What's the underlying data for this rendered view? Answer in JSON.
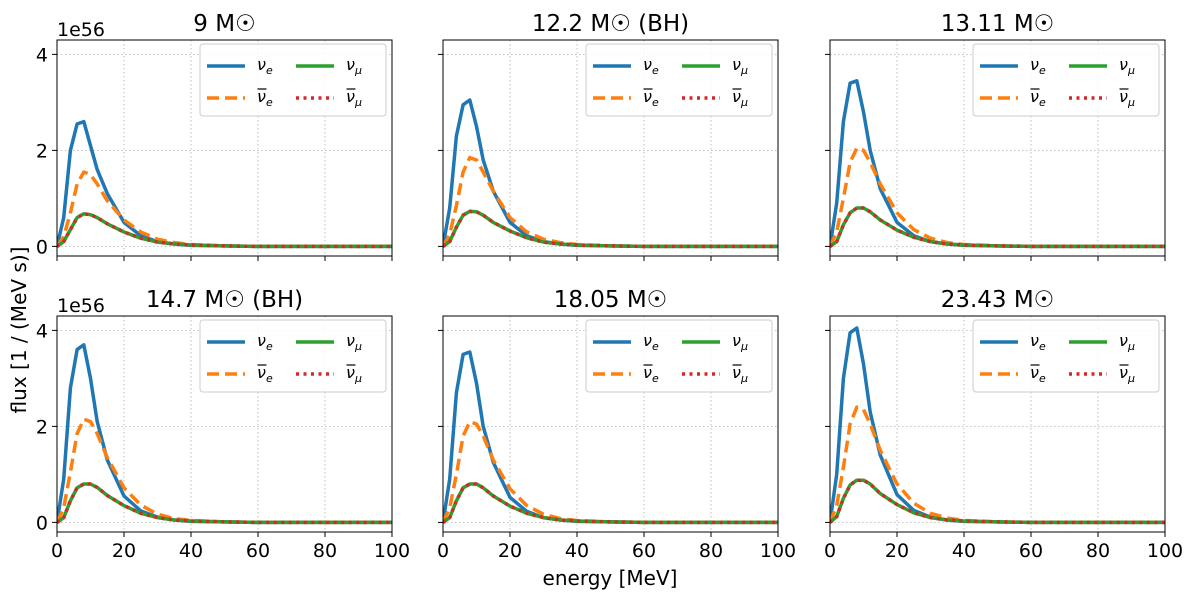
{
  "figure": {
    "ylabel": "flux [1 / (MeV s)]",
    "xlabel": "energy [MeV]",
    "offset_text": "1e56"
  },
  "legend_labels": [
    "ν_e",
    "ν̄_e",
    "ν_μ",
    "ν̄_μ"
  ],
  "colors": {
    "nu_e": "#1f77b4",
    "nubar_e": "#ff7f0e",
    "nu_mu": "#2ca02c",
    "nubar_mu": "#d62728"
  },
  "chart_data": [
    {
      "type": "line",
      "title": "9 M☉",
      "xlim": [
        0,
        100
      ],
      "ylim": [
        -0.2,
        4.3
      ],
      "xticks": [
        0,
        20,
        40,
        60,
        80,
        100
      ],
      "yticks": [
        0,
        2,
        4
      ],
      "grid": true,
      "legend": "top-right",
      "x": [
        0,
        2,
        4,
        6,
        8,
        10,
        12,
        15,
        20,
        25,
        30,
        35,
        40,
        50,
        60,
        80,
        100
      ],
      "series": [
        {
          "name": "ν_e",
          "values": [
            0,
            0.6,
            2.0,
            2.55,
            2.6,
            2.1,
            1.6,
            1.1,
            0.5,
            0.22,
            0.1,
            0.05,
            0.02,
            0.01,
            0,
            0,
            0
          ]
        },
        {
          "name": "ν̄_e",
          "values": [
            0,
            0.2,
            0.7,
            1.3,
            1.55,
            1.5,
            1.3,
            0.95,
            0.55,
            0.3,
            0.15,
            0.08,
            0.04,
            0.01,
            0,
            0,
            0
          ]
        },
        {
          "name": "ν_μ",
          "values": [
            0,
            0.1,
            0.35,
            0.6,
            0.68,
            0.66,
            0.6,
            0.47,
            0.3,
            0.17,
            0.09,
            0.05,
            0.03,
            0.01,
            0,
            0,
            0
          ]
        },
        {
          "name": "ν̄_μ",
          "values": [
            0,
            0.1,
            0.35,
            0.6,
            0.68,
            0.66,
            0.6,
            0.47,
            0.3,
            0.17,
            0.09,
            0.05,
            0.03,
            0.01,
            0,
            0,
            0
          ]
        }
      ]
    },
    {
      "type": "line",
      "title": "12.2 M☉ (BH)",
      "xlim": [
        0,
        100
      ],
      "ylim": [
        -0.2,
        4.3
      ],
      "xticks": [
        0,
        20,
        40,
        60,
        80,
        100
      ],
      "yticks": [
        0,
        2,
        4
      ],
      "grid": true,
      "legend": "top-right",
      "x": [
        0,
        2,
        4,
        6,
        8,
        10,
        12,
        15,
        20,
        25,
        30,
        35,
        40,
        50,
        60,
        80,
        100
      ],
      "series": [
        {
          "name": "ν_e",
          "values": [
            0,
            0.8,
            2.3,
            2.95,
            3.05,
            2.5,
            1.8,
            1.15,
            0.5,
            0.22,
            0.1,
            0.05,
            0.02,
            0.01,
            0,
            0,
            0
          ]
        },
        {
          "name": "ν̄_e",
          "values": [
            0,
            0.25,
            0.85,
            1.55,
            1.85,
            1.8,
            1.55,
            1.15,
            0.6,
            0.3,
            0.15,
            0.08,
            0.04,
            0.01,
            0,
            0,
            0
          ]
        },
        {
          "name": "ν_μ",
          "values": [
            0,
            0.1,
            0.4,
            0.65,
            0.73,
            0.72,
            0.65,
            0.5,
            0.32,
            0.18,
            0.09,
            0.05,
            0.03,
            0.01,
            0,
            0,
            0
          ]
        },
        {
          "name": "ν̄_μ",
          "values": [
            0,
            0.1,
            0.4,
            0.65,
            0.73,
            0.72,
            0.65,
            0.5,
            0.32,
            0.18,
            0.09,
            0.05,
            0.03,
            0.01,
            0,
            0,
            0
          ]
        }
      ]
    },
    {
      "type": "line",
      "title": "13.11 M☉",
      "xlim": [
        0,
        100
      ],
      "ylim": [
        -0.2,
        4.3
      ],
      "xticks": [
        0,
        20,
        40,
        60,
        80,
        100
      ],
      "yticks": [
        0,
        2,
        4
      ],
      "grid": true,
      "legend": "top-right",
      "x": [
        0,
        2,
        4,
        6,
        8,
        10,
        12,
        15,
        20,
        25,
        30,
        35,
        40,
        50,
        60,
        80,
        100
      ],
      "series": [
        {
          "name": "ν_e",
          "values": [
            0,
            0.9,
            2.6,
            3.4,
            3.45,
            2.8,
            2.0,
            1.2,
            0.5,
            0.22,
            0.1,
            0.05,
            0.02,
            0.01,
            0,
            0,
            0
          ]
        },
        {
          "name": "ν̄_e",
          "values": [
            0,
            0.3,
            1.0,
            1.75,
            2.05,
            2.0,
            1.75,
            1.3,
            0.7,
            0.35,
            0.17,
            0.08,
            0.04,
            0.01,
            0,
            0,
            0
          ]
        },
        {
          "name": "ν_μ",
          "values": [
            0,
            0.1,
            0.45,
            0.7,
            0.8,
            0.8,
            0.72,
            0.55,
            0.34,
            0.19,
            0.1,
            0.05,
            0.03,
            0.01,
            0,
            0,
            0
          ]
        },
        {
          "name": "ν̄_μ",
          "values": [
            0,
            0.1,
            0.45,
            0.7,
            0.8,
            0.8,
            0.72,
            0.55,
            0.34,
            0.19,
            0.1,
            0.05,
            0.03,
            0.01,
            0,
            0,
            0
          ]
        }
      ]
    },
    {
      "type": "line",
      "title": "14.7 M☉ (BH)",
      "xlim": [
        0,
        100
      ],
      "ylim": [
        -0.2,
        4.3
      ],
      "xticks": [
        0,
        20,
        40,
        60,
        80,
        100
      ],
      "yticks": [
        0,
        2,
        4
      ],
      "grid": true,
      "legend": "top-right",
      "x": [
        0,
        2,
        4,
        6,
        8,
        10,
        12,
        15,
        20,
        25,
        30,
        35,
        40,
        50,
        60,
        80,
        100
      ],
      "series": [
        {
          "name": "ν_e",
          "values": [
            0,
            0.9,
            2.8,
            3.6,
            3.7,
            3.0,
            2.1,
            1.3,
            0.55,
            0.24,
            0.11,
            0.05,
            0.02,
            0.01,
            0,
            0,
            0
          ]
        },
        {
          "name": "ν̄_e",
          "values": [
            0,
            0.3,
            1.05,
            1.85,
            2.15,
            2.1,
            1.85,
            1.35,
            0.72,
            0.36,
            0.17,
            0.08,
            0.04,
            0.01,
            0,
            0,
            0
          ]
        },
        {
          "name": "ν_μ",
          "values": [
            0,
            0.1,
            0.45,
            0.72,
            0.8,
            0.8,
            0.73,
            0.56,
            0.35,
            0.19,
            0.1,
            0.05,
            0.03,
            0.01,
            0,
            0,
            0
          ]
        },
        {
          "name": "ν̄_μ",
          "values": [
            0,
            0.1,
            0.45,
            0.72,
            0.8,
            0.8,
            0.73,
            0.56,
            0.35,
            0.19,
            0.1,
            0.05,
            0.03,
            0.01,
            0,
            0,
            0
          ]
        }
      ]
    },
    {
      "type": "line",
      "title": "18.05 M☉",
      "xlim": [
        0,
        100
      ],
      "ylim": [
        -0.2,
        4.3
      ],
      "xticks": [
        0,
        20,
        40,
        60,
        80,
        100
      ],
      "yticks": [
        0,
        2,
        4
      ],
      "grid": true,
      "legend": "top-right",
      "x": [
        0,
        2,
        4,
        6,
        8,
        10,
        12,
        15,
        20,
        25,
        30,
        35,
        40,
        50,
        60,
        80,
        100
      ],
      "series": [
        {
          "name": "ν_e",
          "values": [
            0,
            0.9,
            2.7,
            3.5,
            3.55,
            2.9,
            2.0,
            1.25,
            0.52,
            0.23,
            0.1,
            0.05,
            0.02,
            0.01,
            0,
            0,
            0
          ]
        },
        {
          "name": "ν̄_e",
          "values": [
            0,
            0.3,
            1.0,
            1.8,
            2.1,
            2.05,
            1.8,
            1.3,
            0.7,
            0.35,
            0.17,
            0.08,
            0.04,
            0.01,
            0,
            0,
            0
          ]
        },
        {
          "name": "ν_μ",
          "values": [
            0,
            0.1,
            0.45,
            0.72,
            0.8,
            0.8,
            0.72,
            0.55,
            0.34,
            0.19,
            0.1,
            0.05,
            0.03,
            0.01,
            0,
            0,
            0
          ]
        },
        {
          "name": "ν̄_μ",
          "values": [
            0,
            0.1,
            0.45,
            0.72,
            0.8,
            0.8,
            0.72,
            0.55,
            0.34,
            0.19,
            0.1,
            0.05,
            0.03,
            0.01,
            0,
            0,
            0
          ]
        }
      ]
    },
    {
      "type": "line",
      "title": "23.43 M☉",
      "xlim": [
        0,
        100
      ],
      "ylim": [
        -0.2,
        4.3
      ],
      "xticks": [
        0,
        20,
        40,
        60,
        80,
        100
      ],
      "yticks": [
        0,
        2,
        4
      ],
      "grid": true,
      "legend": "top-right",
      "x": [
        0,
        2,
        4,
        6,
        8,
        10,
        12,
        15,
        20,
        25,
        30,
        35,
        40,
        50,
        60,
        80,
        100
      ],
      "series": [
        {
          "name": "ν_e",
          "values": [
            0,
            1.0,
            3.0,
            3.95,
            4.05,
            3.3,
            2.3,
            1.4,
            0.58,
            0.25,
            0.11,
            0.05,
            0.02,
            0.01,
            0,
            0,
            0
          ]
        },
        {
          "name": "ν̄_e",
          "values": [
            0,
            0.35,
            1.15,
            2.05,
            2.4,
            2.35,
            2.05,
            1.5,
            0.8,
            0.4,
            0.19,
            0.09,
            0.04,
            0.01,
            0,
            0,
            0
          ]
        },
        {
          "name": "ν_μ",
          "values": [
            0,
            0.12,
            0.5,
            0.78,
            0.88,
            0.88,
            0.8,
            0.6,
            0.37,
            0.2,
            0.1,
            0.05,
            0.03,
            0.01,
            0,
            0,
            0
          ]
        },
        {
          "name": "ν̄_μ",
          "values": [
            0,
            0.12,
            0.5,
            0.78,
            0.88,
            0.88,
            0.8,
            0.6,
            0.37,
            0.2,
            0.1,
            0.05,
            0.03,
            0.01,
            0,
            0,
            0
          ]
        }
      ]
    }
  ]
}
